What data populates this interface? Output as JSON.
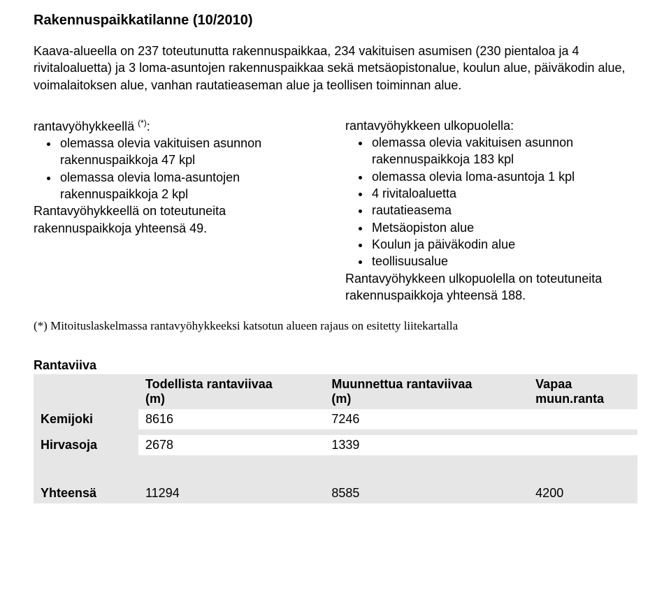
{
  "title": "Rakennuspaikkatilanne (10/2010)",
  "intro": "Kaava-alueella on 237 toteutunutta rakennuspaikkaa, 234 vakituisen asumisen (230 pientaloa ja 4 rivitaloaluetta) ja 3 loma-asuntojen rakennuspaikkaa sekä metsäopistonalue, koulun alue, päiväkodin alue, voimalaitoksen alue, vanhan rautatieaseman alue ja teollisen toiminnan alue.",
  "left": {
    "heading_pre": "rantavyöhykkeellä ",
    "heading_sup": "(*)",
    "heading_post": ":",
    "bullets": [
      "olemassa olevia vakituisen asunnon rakennuspaikkoja 47 kpl",
      "olemassa olevia loma-asuntojen rakennuspaikkoja 2 kpl"
    ],
    "after": "Rantavyöhykkeellä on toteutuneita rakennuspaikkoja yhteensä 49."
  },
  "right": {
    "heading": "rantavyöhykkeen ulkopuolella:",
    "bullets": [
      "olemassa olevia vakituisen asunnon rakennuspaikkoja 183 kpl",
      "olemassa olevia loma-asuntoja 1 kpl",
      "4 rivitaloaluetta",
      "rautatieasema",
      "Metsäopiston alue",
      "Koulun ja päiväkodin alue",
      "teollisuusalue"
    ],
    "after": "Rantavyöhykkeen ulkopuolella on toteutuneita rakennuspaikkoja yhteensä 188."
  },
  "footnote": "(*) Mitoituslaskelmassa rantavyöhykkeeksi katsotun alueen rajaus on esitetty liitekartalla",
  "table": {
    "section_heading": "Rantaviiva",
    "headers": {
      "col1_line1": "Todellista rantaviivaa",
      "col1_line2": "(m)",
      "col2_line1": "Muunnettua rantaviivaa",
      "col2_line2": "(m)",
      "col3_line1": "Vapaa",
      "col3_line2": "muun.ranta"
    },
    "rows": {
      "kemijoki_label": "Kemijoki",
      "kemijoki_v1": "8616",
      "kemijoki_v2": "7246",
      "kemijoki_v3": "",
      "hirvasoja_label": "Hirvasoja",
      "hirvasoja_v1": "2678",
      "hirvasoja_v2": "1339",
      "hirvasoja_v3": "",
      "yht_label": "Yhteensä",
      "yht_v1": "11294",
      "yht_v2": "8585",
      "yht_v3": "4200"
    },
    "shade_color": "#e6e6e6",
    "background_color": "#ffffff",
    "text_color": "#000000",
    "font_size": 18
  }
}
